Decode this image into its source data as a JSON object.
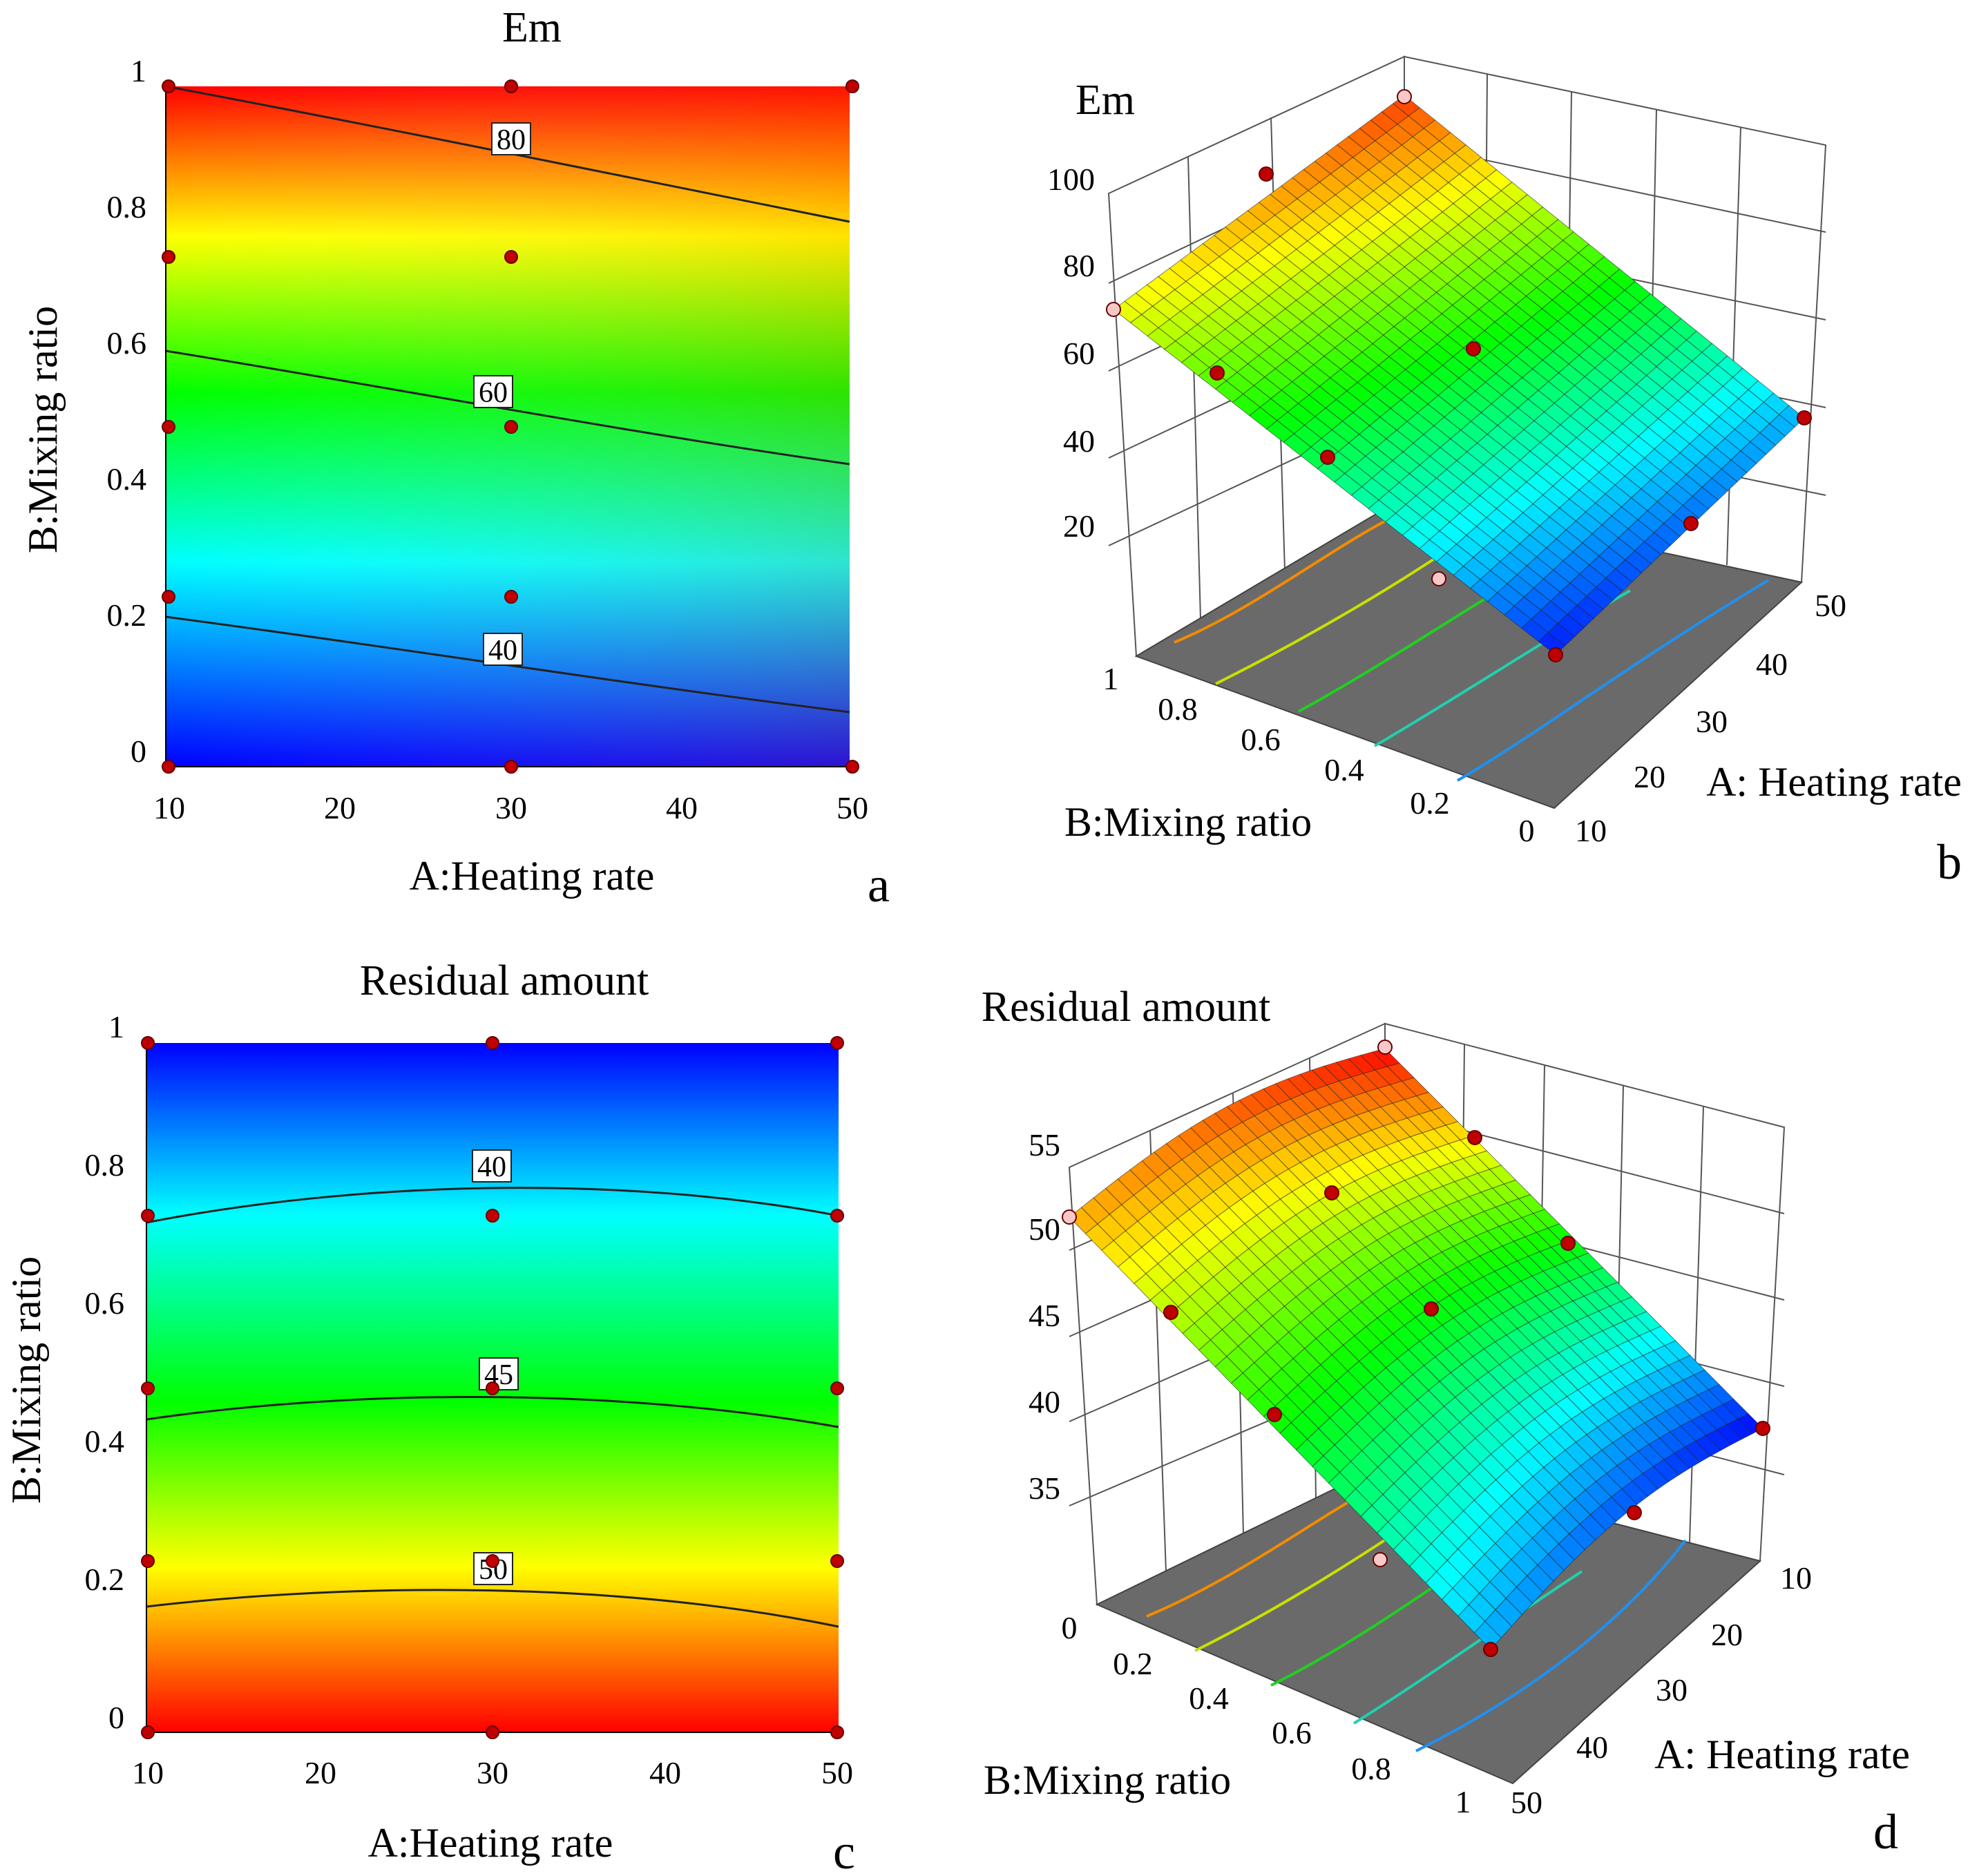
{
  "charts": {
    "a": {
      "type": "heatmap",
      "title": "Em",
      "xlabel": "A:Heating rate",
      "ylabel": "B:Mixing ratio",
      "xticks": [
        "10",
        "20",
        "30",
        "40",
        "50"
      ],
      "yticks": [
        "0",
        "0.2",
        "0.4",
        "0.6",
        "0.8",
        "1"
      ],
      "contour_labels": [
        "40",
        "60",
        "80"
      ],
      "panel_letter": "a"
    },
    "b": {
      "type": "surface",
      "title": "Em",
      "zticks": [
        "20",
        "40",
        "60",
        "80",
        "100"
      ],
      "bticks": [
        "1",
        "0.8",
        "0.6",
        "0.4",
        "0.2",
        "0"
      ],
      "aticks": [
        "10",
        "20",
        "30",
        "40",
        "50"
      ],
      "blabel": "B:Mixing ratio",
      "alabel": "A: Heating rate",
      "panel_letter": "b"
    },
    "c": {
      "type": "heatmap",
      "title": "Residual amount",
      "xlabel": "A:Heating rate",
      "ylabel": "B:Mixing ratio",
      "xticks": [
        "10",
        "20",
        "30",
        "40",
        "50"
      ],
      "yticks": [
        "0",
        "0.2",
        "0.4",
        "0.6",
        "0.8",
        "1"
      ],
      "contour_labels": [
        "40",
        "45",
        "50"
      ],
      "panel_letter": "c"
    },
    "d": {
      "type": "surface",
      "title": "Residual amount",
      "zticks": [
        "35",
        "40",
        "45",
        "50",
        "55"
      ],
      "bticks": [
        "0",
        "0.2",
        "0.4",
        "0.6",
        "0.8",
        "1"
      ],
      "aticks": [
        "10",
        "20",
        "30",
        "40",
        "50"
      ],
      "blabel": "B:Mixing ratio",
      "alabel": "A: Heating rate",
      "panel_letter": "d"
    }
  },
  "chart_data": [
    {
      "type": "heatmap",
      "title": "Em",
      "xlabel": "A:Heating rate",
      "ylabel": "B:Mixing ratio",
      "xlim": [
        10,
        50
      ],
      "ylim": [
        0,
        1
      ],
      "color_range": [
        13,
        100
      ],
      "colormap": [
        "#0000ff",
        "#00ffff",
        "#00ff00",
        "#ffff00",
        "#ff0000"
      ],
      "contours": [
        {
          "level": 40,
          "b_at_a10": 0.22,
          "b_at_a50": 0.08
        },
        {
          "level": 60,
          "b_at_a10": 0.61,
          "b_at_a50": 0.445
        },
        {
          "level": 80,
          "b_at_a10": 1.0,
          "b_at_a50": 0.8
        }
      ],
      "design_points": [
        [
          10,
          0
        ],
        [
          30,
          0
        ],
        [
          50,
          0
        ],
        [
          10,
          0.25
        ],
        [
          30,
          0.25
        ],
        [
          10,
          0.5
        ],
        [
          30,
          0.5
        ],
        [
          10,
          0.75
        ],
        [
          30,
          0.75
        ],
        [
          10,
          1
        ],
        [
          30,
          1
        ],
        [
          50,
          1
        ]
      ]
    },
    {
      "type": "surface",
      "title": "Em",
      "xlabel": "A: Heating rate",
      "ylabel": "B:Mixing ratio",
      "zticks": [
        20,
        40,
        60,
        80,
        100
      ],
      "xlim": [
        10,
        50
      ],
      "ylim": [
        0,
        1
      ],
      "zlim": [
        0,
        100
      ],
      "corners": {
        "b1_a10": 75,
        "b1_a50": 93,
        "b0_a10": 12,
        "b0_a50": 25
      }
    },
    {
      "type": "heatmap",
      "title": "Residual amount",
      "xlabel": "A:Heating rate",
      "ylabel": "B:Mixing ratio",
      "xlim": [
        10,
        50
      ],
      "ylim": [
        0,
        1
      ],
      "color_range": [
        33,
        56
      ],
      "colormap": [
        "#0000ff",
        "#00ffff",
        "#00ff00",
        "#ffff00",
        "#ff0000"
      ],
      "contours": [
        {
          "level": 40,
          "b_at_a10": 0.74,
          "b_at_a30": 0.795,
          "b_at_a50": 0.76
        },
        {
          "level": 45,
          "b_at_a10": 0.46,
          "b_at_a30": 0.495,
          "b_at_a50": 0.445
        },
        {
          "level": 50,
          "b_at_a10": 0.185,
          "b_at_a30": 0.215,
          "b_at_a50": 0.155
        }
      ],
      "design_points": [
        [
          10,
          0
        ],
        [
          30,
          0
        ],
        [
          50,
          0
        ],
        [
          10,
          0.25
        ],
        [
          30,
          0.25
        ],
        [
          50,
          0.25
        ],
        [
          10,
          0.5
        ],
        [
          30,
          0.5
        ],
        [
          50,
          0.5
        ],
        [
          10,
          0.75
        ],
        [
          30,
          0.75
        ],
        [
          50,
          0.75
        ],
        [
          10,
          1
        ],
        [
          30,
          1
        ],
        [
          50,
          1
        ]
      ]
    },
    {
      "type": "surface",
      "title": "Residual amount",
      "xlabel": "A: Heating rate",
      "ylabel": "B:Mixing ratio",
      "zticks": [
        35,
        40,
        45,
        50,
        55
      ],
      "xlim": [
        10,
        50
      ],
      "ylim": [
        0,
        1
      ],
      "zlim": [
        30,
        55
      ],
      "corners": {
        "b0_a50": 52,
        "b0_a10": 56,
        "b1_a50": 36,
        "b1_a10": 32
      }
    }
  ]
}
